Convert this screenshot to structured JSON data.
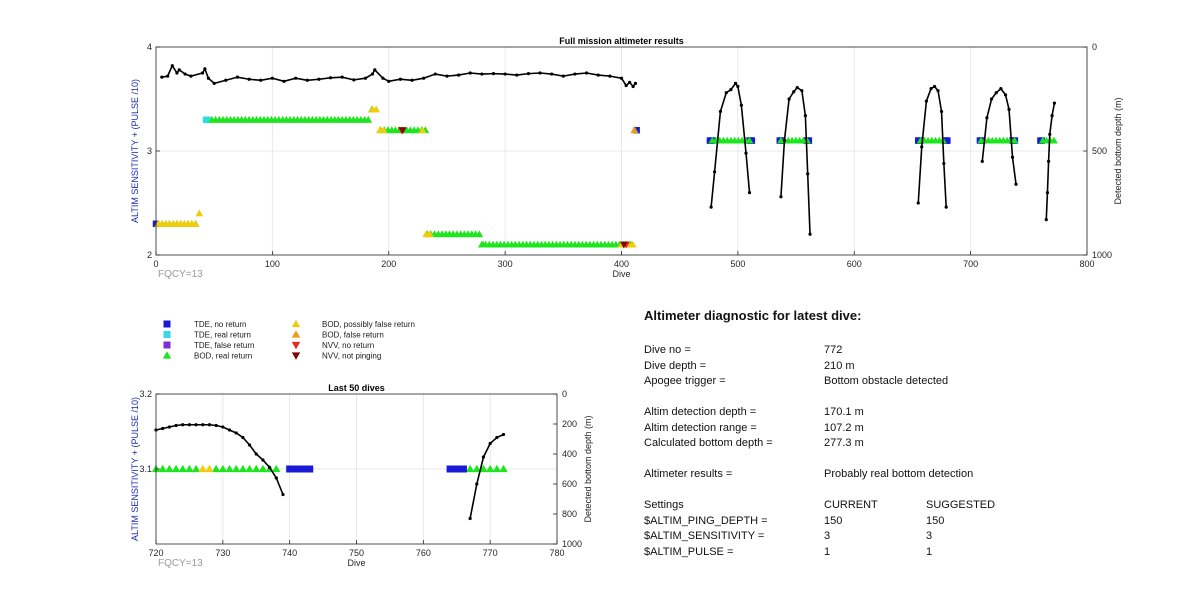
{
  "colors": {
    "tde_no_return": "#1a1ad6",
    "tde_real_return": "#33d9e6",
    "tde_false_return": "#7a2fd0",
    "bod_real_return": "#1ee61e",
    "bod_possibly_false_return": "#f2cc0c",
    "bod_false_return": "#f09a1a",
    "nvv_no_return": "#e8261a",
    "nvv_not_pinging": "#7a0a0a",
    "depth_line": "#000000"
  },
  "legend": [
    {
      "marker": "square",
      "color_key": "tde_no_return",
      "label": "TDE, no return"
    },
    {
      "marker": "square",
      "color_key": "tde_real_return",
      "label": "TDE, real return"
    },
    {
      "marker": "square",
      "color_key": "tde_false_return",
      "label": "TDE, false return"
    },
    {
      "marker": "triangle-up",
      "color_key": "bod_real_return",
      "label": "BOD, real return"
    },
    {
      "marker": "triangle-up",
      "color_key": "bod_possibly_false_return",
      "label": "BOD, possibly false return"
    },
    {
      "marker": "triangle-up",
      "color_key": "bod_false_return",
      "label": "BOD, false return"
    },
    {
      "marker": "triangle-down",
      "color_key": "nvv_no_return",
      "label": "NVV, no return"
    },
    {
      "marker": "triangle-down",
      "color_key": "nvv_not_pinging",
      "label": "NVV, not pinging"
    }
  ],
  "chart_data": [
    {
      "type": "scatter",
      "title": "Full mission altimeter results",
      "xlabel": "Dive",
      "ylabel": "ALTIM SENSITIVITY + (PULSE /10)",
      "y2label": "Detected bottom depth (m)",
      "annotation": "FQCY=13",
      "xlim": [
        0,
        800
      ],
      "ylim": [
        2,
        4
      ],
      "y2lim": [
        0,
        1000
      ],
      "y2_reversed": true,
      "xticks": [
        0,
        100,
        200,
        300,
        400,
        500,
        600,
        700,
        800
      ],
      "yticks": [
        2,
        3,
        4
      ],
      "y2ticks": [
        0,
        500,
        1000
      ],
      "grid": true,
      "markers": [
        {
          "type": "tde_no_return",
          "x": [
            0,
            413,
            476,
            477,
            478,
            510,
            511,
            512,
            536,
            537,
            538,
            559,
            560,
            561,
            655,
            656,
            657,
            678,
            679,
            680,
            708,
            709,
            710,
            736,
            737,
            738,
            760,
            761
          ]
        },
        {
          "type": "tde_real_return",
          "x": [
            43,
            44
          ]
        },
        {
          "type": "bod_real_return",
          "x": [
            [
              2,
              36
            ],
            [
              48,
              188
            ],
            [
              193,
              232
            ],
            [
              233,
              282
            ],
            [
              280,
              412
            ],
            [
              478,
              512
            ],
            [
              537,
              560
            ],
            [
              657,
              678
            ],
            [
              709,
              738
            ],
            [
              762,
              772
            ]
          ]
        },
        {
          "type": "bod_possibly_false_return",
          "x": [
            [
              2,
              38
            ],
            [
              186,
              196
            ],
            [
              229,
              237
            ],
            [
              400,
              412
            ]
          ]
        },
        {
          "type": "bod_false_return",
          "x": [
            411
          ]
        },
        {
          "type": "nvv_no_return",
          "x": [
            211,
            404
          ]
        },
        {
          "type": "nvv_not_pinging",
          "x": [
            212,
            402
          ]
        }
      ],
      "series": [
        {
          "kind": "alt_level",
          "ranges": [
            {
              "x": [
                0,
                38
              ],
              "y": 2.3
            },
            {
              "x": [
                35,
                45
              ],
              "y": 2.4
            },
            {
              "x": [
                43,
                190
              ],
              "y": 3.3
            },
            {
              "x": [
                184,
                198
              ],
              "y": 3.4
            },
            {
              "x": [
                192,
                233
              ],
              "y": 3.2
            },
            {
              "x": [
                232,
                282
              ],
              "y": 2.2
            },
            {
              "x": [
                278,
                412
              ],
              "y": 2.1
            },
            {
              "x": [
                411,
                413
              ],
              "y": 3.2
            },
            {
              "x": [
                475,
                512
              ],
              "y": 3.1
            },
            {
              "x": [
                535,
                562
              ],
              "y": 3.1
            },
            {
              "x": [
                654,
                680
              ],
              "y": 3.1
            },
            {
              "x": [
                706,
                740
              ],
              "y": 3.1
            },
            {
              "x": [
                760,
                772
              ],
              "y": 3.1
            }
          ]
        },
        {
          "kind": "depth",
          "segments": [
            {
              "x": [
                5,
                10,
                14,
                18,
                20,
                25,
                30,
                40,
                42,
                45,
                50,
                60,
                70,
                80,
                90,
                100,
                110,
                120,
                130,
                140,
                150,
                160,
                170,
                180,
                186,
                188,
                195,
                200,
                210,
                220,
                230,
                240,
                250,
                260,
                270,
                280,
                290,
                300,
                310,
                320,
                330,
                340,
                350,
                360,
                370,
                380,
                390,
                400,
                404,
                407,
                410,
                412
              ],
              "y": [
                145,
                140,
                90,
                125,
                110,
                130,
                140,
                125,
                105,
                150,
                175,
                160,
                145,
                155,
                160,
                150,
                165,
                150,
                160,
                155,
                148,
                145,
                158,
                150,
                130,
                110,
                150,
                165,
                155,
                160,
                150,
                130,
                140,
                135,
                125,
                130,
                128,
                130,
                135,
                128,
                125,
                130,
                140,
                130,
                125,
                135,
                140,
                150,
                185,
                170,
                190,
                175
              ]
            },
            {
              "x": [
                477,
                480,
                485,
                490,
                494,
                498,
                500,
                503,
                507,
                510
              ],
              "y": [
                770,
                600,
                310,
                220,
                205,
                175,
                190,
                280,
                510,
                700
              ]
            },
            {
              "x": [
                537,
                540,
                544,
                548,
                551,
                555,
                558,
                560,
                562
              ],
              "y": [
                720,
                450,
                250,
                215,
                195,
                210,
                330,
                610,
                900
              ]
            },
            {
              "x": [
                655,
                658,
                662,
                666,
                669,
                672,
                675,
                677,
                679
              ],
              "y": [
                750,
                480,
                260,
                200,
                190,
                210,
                310,
                560,
                770
              ]
            },
            {
              "x": [
                710,
                714,
                718,
                722,
                726,
                730,
                733,
                736,
                739
              ],
              "y": [
                550,
                340,
                250,
                220,
                200,
                230,
                300,
                530,
                660
              ]
            },
            {
              "x": [
                765,
                766,
                767,
                768,
                770,
                772
              ],
              "y": [
                830,
                700,
                550,
                420,
                330,
                270
              ]
            }
          ]
        }
      ]
    },
    {
      "type": "scatter",
      "title": "Last 50 dives",
      "xlabel": "Dive",
      "ylabel": "ALTIM SENSITIVITY + (PULSE /10)",
      "y2label": "Detected bottom depth (m)",
      "annotation": "FQCY=13",
      "xlim": [
        720,
        780
      ],
      "ylim": [
        3.0,
        3.2
      ],
      "y2lim": [
        0,
        1000
      ],
      "y2_reversed": true,
      "xticks": [
        720,
        730,
        740,
        750,
        760,
        770,
        780
      ],
      "yticks": [
        3.1,
        3.2
      ],
      "y2ticks": [
        0,
        200,
        400,
        600,
        800,
        1000
      ],
      "grid": true,
      "markers": [
        {
          "type": "bod_real_return",
          "x": [
            720,
            721,
            722,
            723,
            724,
            725,
            726,
            729,
            730,
            731,
            732,
            733,
            734,
            735,
            736,
            737,
            738,
            767,
            768,
            769,
            770,
            771,
            772
          ]
        },
        {
          "type": "bod_possibly_false_return",
          "x": [
            727,
            728
          ]
        },
        {
          "type": "tde_no_return",
          "x": [
            740,
            741,
            742,
            743,
            764,
            765,
            766
          ]
        }
      ],
      "series": [
        {
          "kind": "depth",
          "segments": [
            {
              "x": [
                720,
                721,
                722,
                723,
                724,
                725,
                726,
                727,
                728,
                729,
                730,
                731,
                732,
                733,
                734,
                735,
                736,
                737,
                738,
                739
              ],
              "y": [
                240,
                230,
                220,
                210,
                205,
                205,
                205,
                205,
                205,
                210,
                220,
                240,
                260,
                290,
                340,
                400,
                440,
                490,
                560,
                670
              ]
            },
            {
              "x": [
                767,
                768,
                769,
                770,
                771,
                772
              ],
              "y": [
                830,
                600,
                420,
                330,
                290,
                270
              ]
            }
          ]
        }
      ]
    }
  ],
  "diagnostic": {
    "title": "Altimeter diagnostic for latest dive:",
    "rows": [
      {
        "label": "Dive no =",
        "value": "772"
      },
      {
        "label": "Dive depth =",
        "value": "210 m"
      },
      {
        "label": "Apogee trigger =",
        "value": "Bottom obstacle detected"
      },
      {
        "gap": true
      },
      {
        "label": "Altim detection depth =",
        "value": "170.1 m"
      },
      {
        "label": "Altim detection range =",
        "value": "107.2 m"
      },
      {
        "label": "Calculated bottom depth =",
        "value": "277.3 m"
      },
      {
        "gap": true
      },
      {
        "label": "Altimeter results =",
        "value": "Probably real bottom detection"
      },
      {
        "gap": true
      },
      {
        "label": "Settings",
        "value": "CURRENT",
        "value2": "SUGGESTED"
      },
      {
        "label": "$ALTIM_PING_DEPTH =",
        "value": "150",
        "value2": "150"
      },
      {
        "label": "$ALTIM_SENSITIVITY =",
        "value": "3",
        "value2": "3"
      },
      {
        "label": "$ALTIM_PULSE =",
        "value": "1",
        "value2": "1"
      }
    ]
  }
}
